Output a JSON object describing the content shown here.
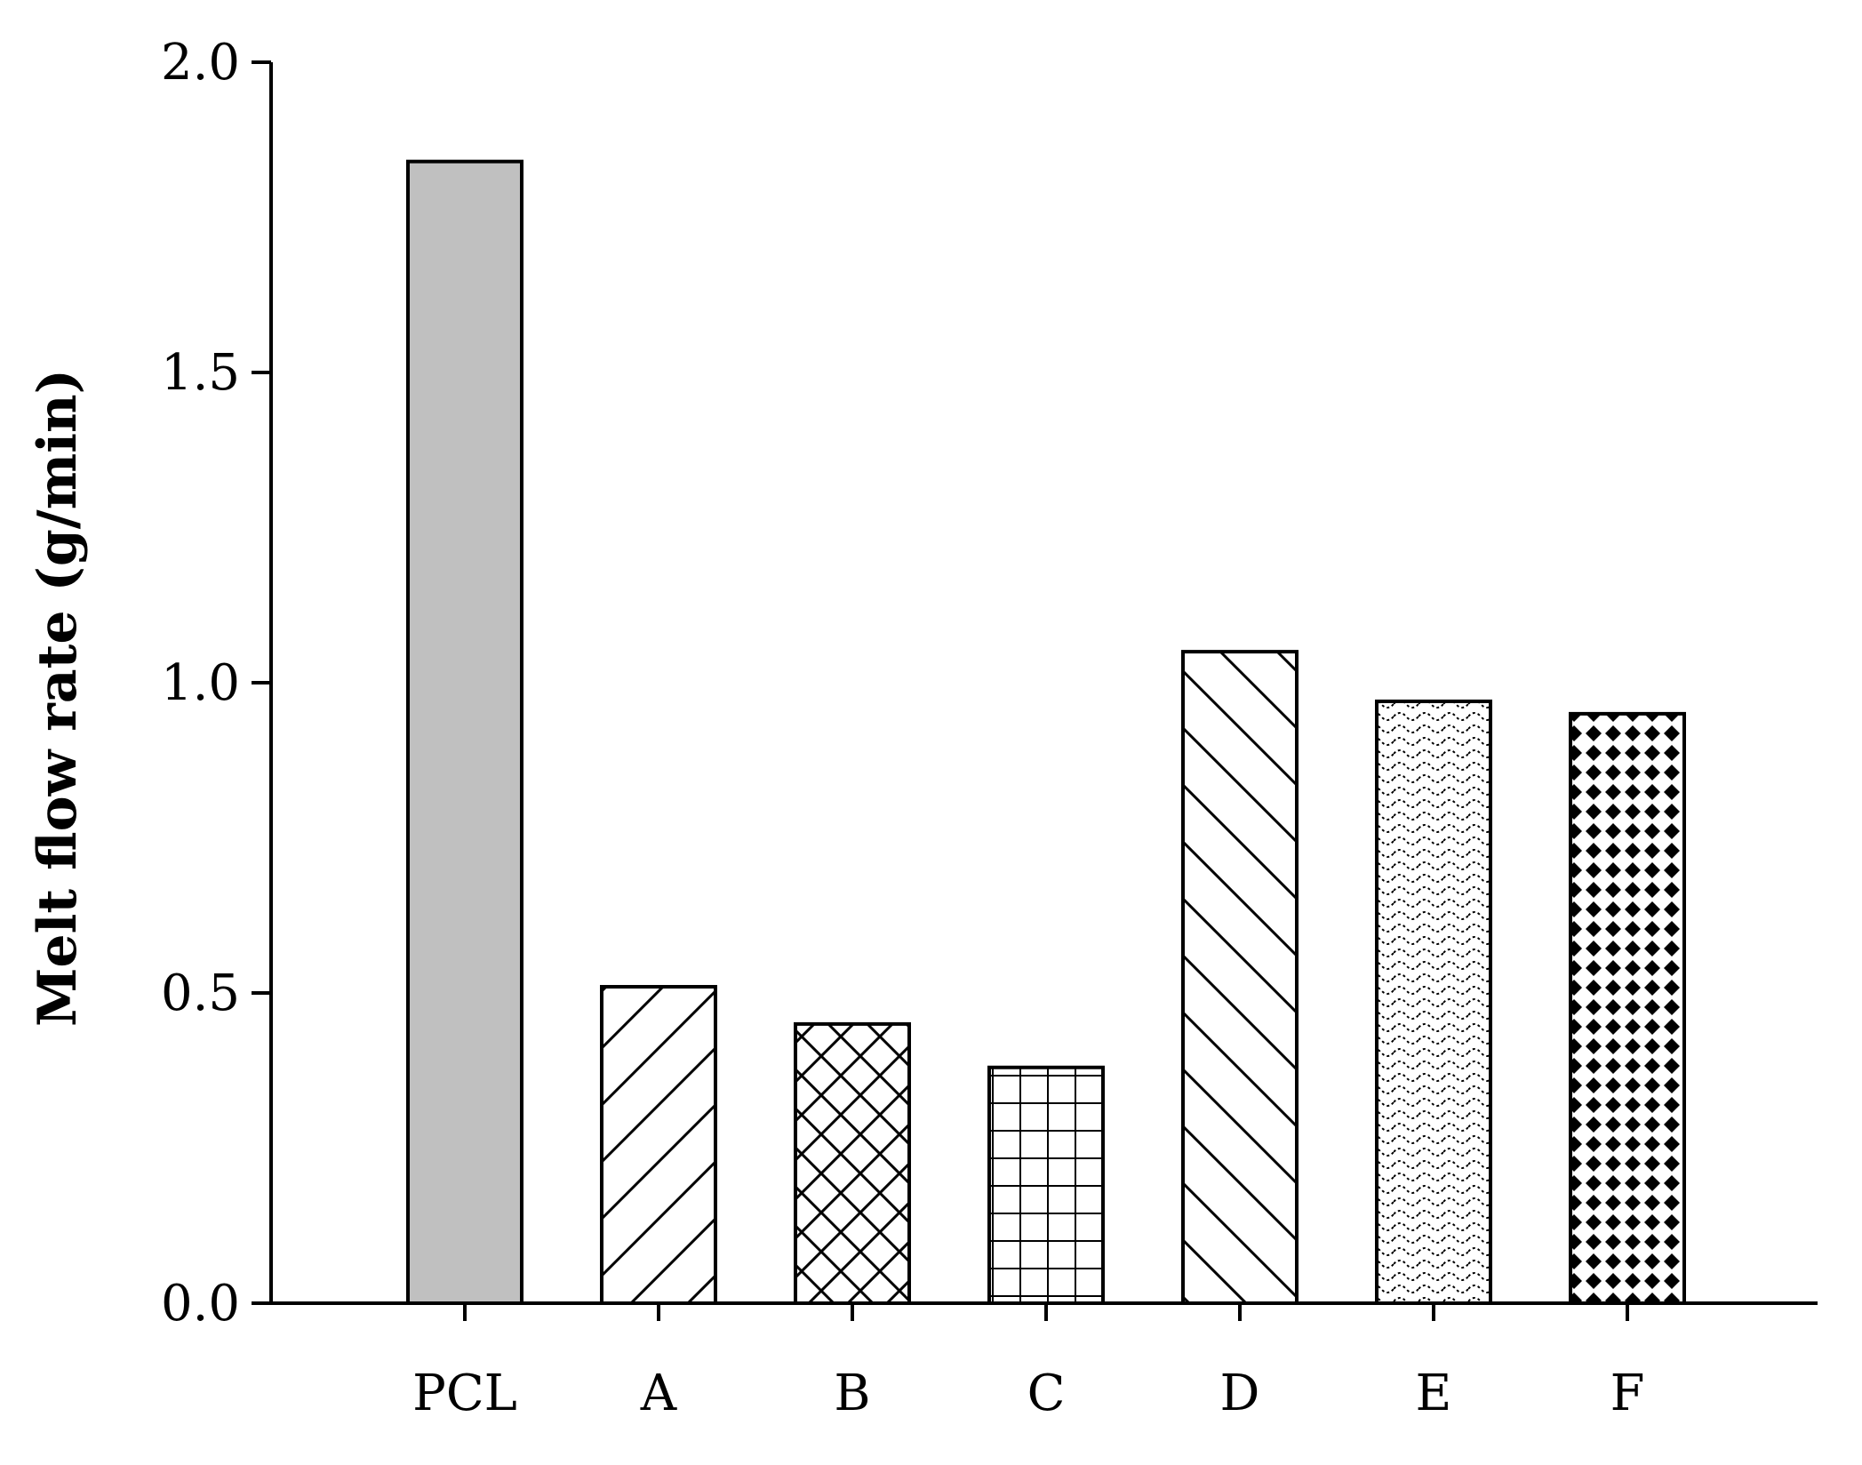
{
  "chart_data": {
    "type": "bar",
    "title": "",
    "xlabel": "",
    "ylabel": "Melt flow rate (g/min)",
    "ylim": [
      0,
      2.0
    ],
    "yticks": [
      "0.0",
      "0.5",
      "1.0",
      "1.5",
      "2.0"
    ],
    "grid": false,
    "legend": "none",
    "categories": [
      "PCL",
      "A",
      "B",
      "C",
      "D",
      "E",
      "F"
    ],
    "values": [
      1.84,
      0.51,
      0.45,
      0.38,
      1.05,
      0.97,
      0.95
    ],
    "bar_fills": [
      "solid-gray",
      "diagonal-forward",
      "crosshatch-diagonal",
      "grid",
      "diagonal-backward",
      "wavy-dotted",
      "diamond-dots"
    ],
    "colors": {
      "pcl_fill": "#c0c0c0",
      "outline": "#000000"
    }
  }
}
